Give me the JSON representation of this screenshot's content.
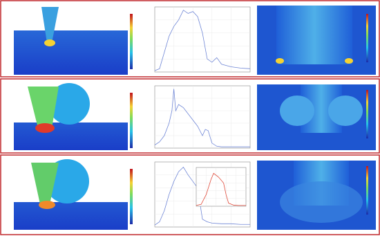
{
  "chart_data": [
    {
      "type": "line",
      "color": "#6f86d6",
      "xlim": [
        0,
        1
      ],
      "ylim": [
        0,
        1
      ],
      "x": [
        0,
        0.05,
        0.1,
        0.15,
        0.2,
        0.25,
        0.3,
        0.35,
        0.4,
        0.45,
        0.5,
        0.55,
        0.6,
        0.65,
        0.7,
        0.8,
        0.9,
        1
      ],
      "values": [
        0.02,
        0.05,
        0.3,
        0.55,
        0.7,
        0.8,
        0.95,
        0.9,
        0.93,
        0.85,
        0.6,
        0.2,
        0.15,
        0.22,
        0.12,
        0.08,
        0.06,
        0.05
      ]
    },
    {
      "type": "line",
      "color": "#6f86d6",
      "xlim": [
        0,
        1
      ],
      "ylim": [
        0,
        1
      ],
      "x": [
        0,
        0.05,
        0.1,
        0.15,
        0.18,
        0.2,
        0.22,
        0.25,
        0.3,
        0.35,
        0.4,
        0.45,
        0.5,
        0.53,
        0.56,
        0.6,
        0.65,
        0.7,
        0.8,
        0.9,
        1
      ],
      "values": [
        0.05,
        0.1,
        0.2,
        0.4,
        0.6,
        0.95,
        0.6,
        0.7,
        0.65,
        0.55,
        0.45,
        0.35,
        0.2,
        0.3,
        0.28,
        0.08,
        0.03,
        0.02,
        0.02,
        0.02,
        0.02
      ]
    },
    {
      "type": "line",
      "color": "#6f86d6",
      "xlim": [
        0,
        1
      ],
      "ylim": [
        0,
        1
      ],
      "x": [
        0,
        0.05,
        0.1,
        0.15,
        0.2,
        0.25,
        0.3,
        0.35,
        0.4,
        0.45,
        0.5,
        0.55,
        0.6,
        0.7,
        0.8,
        0.9,
        1
      ],
      "values": [
        0.03,
        0.08,
        0.25,
        0.5,
        0.7,
        0.85,
        0.92,
        0.8,
        0.7,
        0.6,
        0.12,
        0.08,
        0.06,
        0.05,
        0.05,
        0.04,
        0.04
      ]
    },
    {
      "type": "line",
      "color": "#e04a3a",
      "xlim": [
        0,
        1
      ],
      "ylim": [
        0,
        1
      ],
      "x": [
        0,
        0.1,
        0.2,
        0.3,
        0.35,
        0.45,
        0.55,
        0.6,
        0.65,
        0.75,
        0.85,
        1
      ],
      "values": [
        0.02,
        0.05,
        0.3,
        0.7,
        0.85,
        0.75,
        0.6,
        0.3,
        0.08,
        0.03,
        0.02,
        0.02
      ]
    }
  ]
}
